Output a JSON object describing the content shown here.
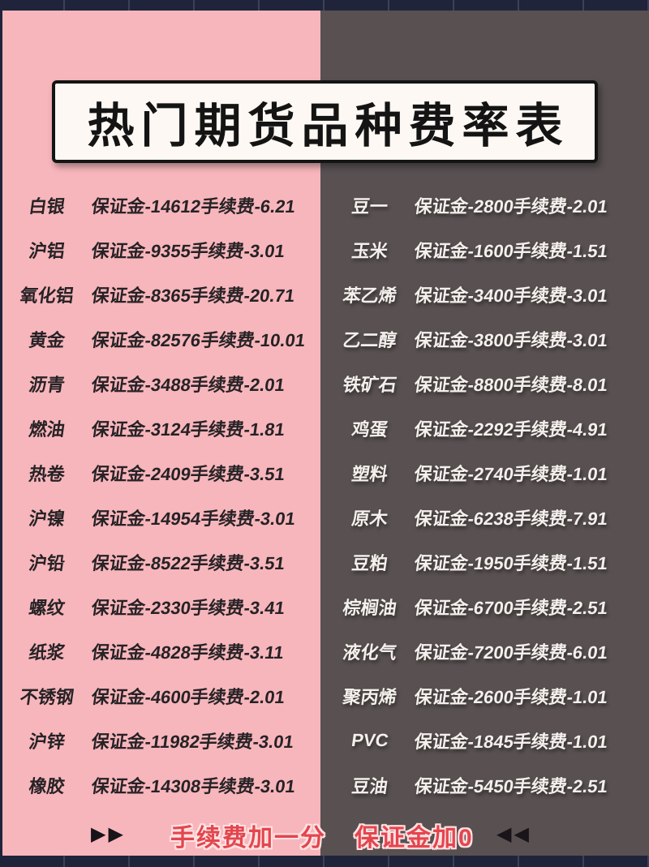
{
  "title": "热门期货品种费率表",
  "left_panel": {
    "rows": [
      {
        "name": "白银",
        "margin": "保证金-14612",
        "fee": "手续费-6.21"
      },
      {
        "name": "沪铝",
        "margin": "保证金-9355",
        "fee": "手续费-3.01"
      },
      {
        "name": "氧化铝",
        "margin": "保证金-8365",
        "fee": "手续费-20.71"
      },
      {
        "name": "黄金",
        "margin": "保证金-82576",
        "fee": "手续费-10.01"
      },
      {
        "name": "沥青",
        "margin": "保证金-3488",
        "fee": "手续费-2.01"
      },
      {
        "name": "燃油",
        "margin": "保证金-3124",
        "fee": "手续费-1.81"
      },
      {
        "name": "热卷",
        "margin": "保证金-2409",
        "fee": "手续费-3.51"
      },
      {
        "name": "沪镍",
        "margin": "保证金-14954",
        "fee": "手续费-3.01"
      },
      {
        "name": "沪铅",
        "margin": "保证金-8522",
        "fee": "手续费-3.51"
      },
      {
        "name": "螺纹",
        "margin": "保证金-2330",
        "fee": "手续费-3.41"
      },
      {
        "name": "纸浆",
        "margin": "保证金-4828",
        "fee": "手续费-3.11"
      },
      {
        "name": "不锈钢",
        "margin": "保证金-4600",
        "fee": "手续费-2.01"
      },
      {
        "name": "沪锌",
        "margin": "保证金-11982",
        "fee": "手续费-3.01"
      },
      {
        "name": "橡胶",
        "margin": "保证金-14308",
        "fee": "手续费-3.01"
      }
    ]
  },
  "right_panel": {
    "rows": [
      {
        "name": "豆一",
        "margin": "保证金-2800",
        "fee": "手续费-2.01"
      },
      {
        "name": "玉米",
        "margin": "保证金-1600",
        "fee": "手续费-1.51"
      },
      {
        "name": "苯乙烯",
        "margin": "保证金-3400",
        "fee": "手续费-3.01"
      },
      {
        "name": "乙二醇",
        "margin": "保证金-3800",
        "fee": "手续费-3.01"
      },
      {
        "name": "铁矿石",
        "margin": "保证金-8800",
        "fee": "手续费-8.01"
      },
      {
        "name": "鸡蛋",
        "margin": "保证金-2292",
        "fee": "手续费-4.91"
      },
      {
        "name": "塑料",
        "margin": "保证金-2740",
        "fee": "手续费-1.01"
      },
      {
        "name": "原木",
        "margin": "保证金-6238",
        "fee": "手续费-7.91"
      },
      {
        "name": "豆粕",
        "margin": "保证金-1950",
        "fee": "手续费-1.51"
      },
      {
        "name": "棕榈油",
        "margin": "保证金-6700",
        "fee": "手续费-2.51"
      },
      {
        "name": "液化气",
        "margin": "保证金-7200",
        "fee": "手续费-6.01"
      },
      {
        "name": "聚丙烯",
        "margin": "保证金-2600",
        "fee": "手续费-1.01"
      },
      {
        "name": "PVC",
        "margin": "保证金-1845",
        "fee": "手续费-1.01"
      },
      {
        "name": "豆油",
        "margin": "保证金-5450",
        "fee": "手续费-2.51"
      }
    ]
  },
  "footer": {
    "fee_note": "手续费加一分",
    "margin_note": "保证金加0",
    "forward_arrows": "▶▶",
    "rewind_arrows": "◀◀"
  },
  "colors": {
    "pink_panel": "#f7b6bc",
    "dark_panel": "#585051",
    "navy_strip": "#20243a",
    "title_box_bg": "#fdf8f3",
    "title_ink": "#141414",
    "left_text": "#262225",
    "right_text": "#f4f0ec",
    "note_red": "#e3464e",
    "note_outline": "#ffe2e3"
  }
}
